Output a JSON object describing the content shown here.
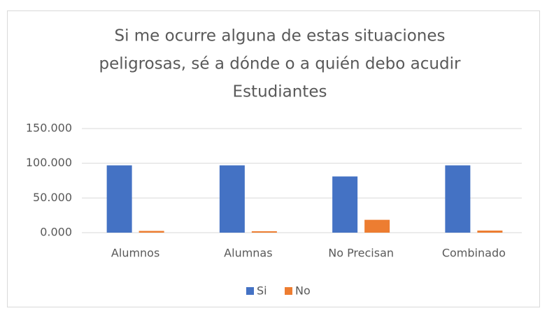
{
  "chart_data": {
    "type": "bar",
    "title": [
      "Si me ocurre alguna de estas situaciones",
      "peligrosas, sé a dónde o a quién debo acudir"
    ],
    "subtitle": "Estudiantes",
    "categories": [
      "Alumnos",
      "Alumnas",
      "No Precisan",
      "Combinado"
    ],
    "series": [
      {
        "name": "Si",
        "color": "#4472c4",
        "values": [
          97,
          97,
          81,
          97
        ]
      },
      {
        "name": "No",
        "color": "#ed7d31",
        "values": [
          2.5,
          2,
          18.5,
          3
        ]
      }
    ],
    "ylim": [
      0,
      150
    ],
    "yticks": [
      {
        "value": 0,
        "label": "0.000"
      },
      {
        "value": 50,
        "label": "50.000"
      },
      {
        "value": 100,
        "label": "100.000"
      },
      {
        "value": 150,
        "label": "150.000"
      }
    ],
    "grid": true,
    "legend": "bottom"
  }
}
